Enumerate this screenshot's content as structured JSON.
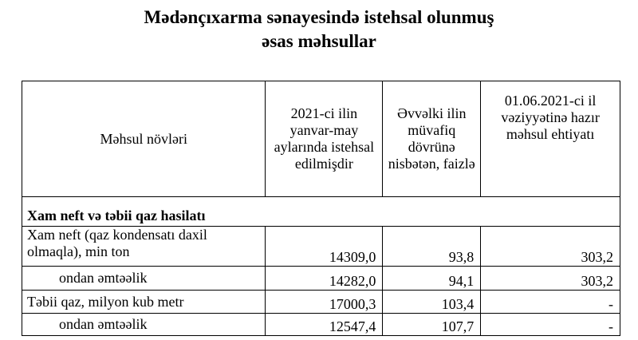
{
  "title": {
    "line1": "Mədənçıxarma sənayesində istehsal olunmuş",
    "line2": "əsas məhsullar"
  },
  "columns": [
    "Məhsul növləri",
    "2021-ci ilin yanvar-may aylarında istehsal edilmişdir",
    "Əvvəlki ilin müvafiq dövrünə nisbətən, faizlə",
    "01.06.2021-ci il vəziyyətinə hazır məhsul ehtiyatı"
  ],
  "section": "Xam neft və təbii qaz hasilatı",
  "rows": [
    {
      "name": "Xam neft (qaz kondensatı daxil olmaqla), min ton",
      "produced": "14309,0",
      "percent": "93,8",
      "stock": "303,2"
    },
    {
      "name": "ondan əmtəəlik",
      "produced": "14282,0",
      "percent": "94,1",
      "stock": "303,2"
    },
    {
      "name": "Təbii qaz, milyon kub metr",
      "produced": "17000,3",
      "percent": "103,4",
      "stock": "-"
    },
    {
      "name": "ondan əmtəəlik",
      "produced": "12547,4",
      "percent": "107,7",
      "stock": "-"
    }
  ]
}
